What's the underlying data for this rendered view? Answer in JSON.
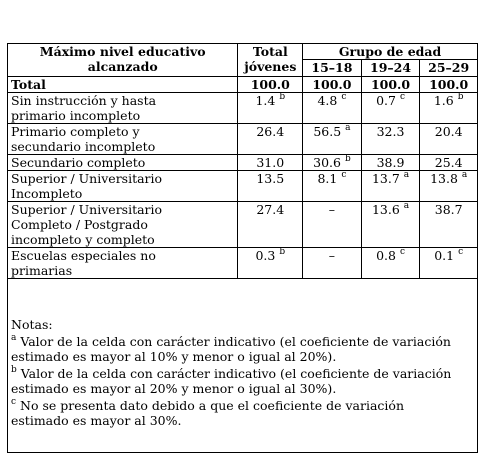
{
  "header": {
    "col1_line1": "Máximo nivel educativo",
    "col1_line2": "alcanzado",
    "col2_line1": "Total",
    "col2_line2": "jóvenes",
    "group_label": "Grupo de edad",
    "ages": [
      "15–18",
      "19–24",
      "25–29"
    ]
  },
  "rows": [
    {
      "label_lines": [
        "Total"
      ],
      "values": [
        {
          "v": "100.0",
          "s": ""
        },
        {
          "v": "100.0",
          "s": ""
        },
        {
          "v": "100.0",
          "s": ""
        },
        {
          "v": "100.0",
          "s": ""
        }
      ]
    },
    {
      "label_lines": [
        "Sin instrucción y hasta",
        "primario incompleto"
      ],
      "values": [
        {
          "v": "1.4",
          "s": "b"
        },
        {
          "v": "4.8",
          "s": "c"
        },
        {
          "v": "0.7",
          "s": "c"
        },
        {
          "v": "1.6",
          "s": "b"
        }
      ]
    },
    {
      "label_lines": [
        "Primario completo y",
        "secundario incompleto"
      ],
      "values": [
        {
          "v": "26.4",
          "s": ""
        },
        {
          "v": "56.5",
          "s": "a"
        },
        {
          "v": "32.3",
          "s": ""
        },
        {
          "v": "20.4",
          "s": ""
        }
      ]
    },
    {
      "label_lines": [
        "Secundario completo"
      ],
      "values": [
        {
          "v": "31.0",
          "s": ""
        },
        {
          "v": "30.6",
          "s": "b"
        },
        {
          "v": "38.9",
          "s": ""
        },
        {
          "v": "25.4",
          "s": ""
        }
      ]
    },
    {
      "label_lines": [
        "Superior / Universitario",
        "Incompleto"
      ],
      "values": [
        {
          "v": "13.5",
          "s": ""
        },
        {
          "v": "8.1",
          "s": "c"
        },
        {
          "v": "13.7",
          "s": "a"
        },
        {
          "v": "13.8",
          "s": "a"
        }
      ]
    },
    {
      "label_lines": [
        "Superior / Universitario",
        "Completo / Postgrado",
        "incompleto y completo"
      ],
      "values": [
        {
          "v": "27.4",
          "s": ""
        },
        {
          "v": "–",
          "s": ""
        },
        {
          "v": "13.6",
          "s": "a"
        },
        {
          "v": "38.7",
          "s": ""
        }
      ]
    },
    {
      "label_lines": [
        "Escuelas especiales no",
        "primarias"
      ],
      "values": [
        {
          "v": "0.3",
          "s": "b"
        },
        {
          "v": "–",
          "s": ""
        },
        {
          "v": "0.8",
          "s": "c"
        },
        {
          "v": "0.1",
          "s": "c"
        }
      ]
    }
  ],
  "notes": {
    "title": "Notas:",
    "items": [
      {
        "mark": "a",
        "line1": " Valor de la celda con carácter indicativo (el coeficiente de variación",
        "line2": "estimado es mayor al 10% y menor o igual al 20%)."
      },
      {
        "mark": "b",
        "line1": " Valor de la celda con carácter indicativo (el coeficiente de variación",
        "line2": "estimado es mayor al 20% y menor o igual al 30%)."
      },
      {
        "mark": "c",
        "line1": " No se presenta dato debido a que el coeficiente de variación",
        "line2": "estimado es mayor al 30%."
      }
    ]
  }
}
